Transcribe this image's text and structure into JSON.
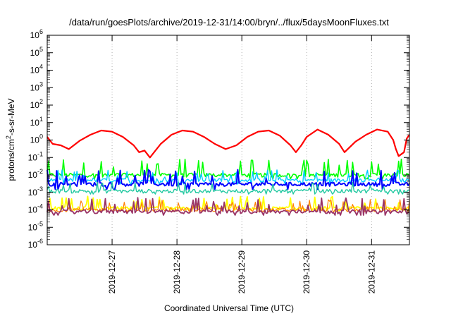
{
  "chart_data": {
    "type": "line",
    "title": "/data/run/goesPlots/archive/2019-12-31/14:00/bryn/../flux/5daysMoonFluxes.txt",
    "xlabel": "Coordinated Universal Time (UTC)",
    "ylabel": "protons/cm²-s-sr-MeV",
    "ylabel_parts": {
      "main": "protons/cm",
      "sup": "2",
      "rest": "-s-sr-MeV"
    },
    "y_scale": "log",
    "ylim": [
      1e-06,
      1000000.0
    ],
    "y_ticks": [
      {
        "value": 1e-06,
        "base": "10",
        "exp": "-6"
      },
      {
        "value": 1e-05,
        "base": "10",
        "exp": "-5"
      },
      {
        "value": 0.0001,
        "base": "10",
        "exp": "-4"
      },
      {
        "value": 0.001,
        "base": "10",
        "exp": "-3"
      },
      {
        "value": 0.01,
        "base": "10",
        "exp": "-2"
      },
      {
        "value": 0.1,
        "base": "10",
        "exp": "-1"
      },
      {
        "value": 1,
        "base": "10",
        "exp": "0"
      },
      {
        "value": 10,
        "base": "10",
        "exp": "1"
      },
      {
        "value": 100,
        "base": "10",
        "exp": "2"
      },
      {
        "value": 1000,
        "base": "10",
        "exp": "3"
      },
      {
        "value": 10000,
        "base": "10",
        "exp": "4"
      },
      {
        "value": 100000,
        "base": "10",
        "exp": "5"
      },
      {
        "value": 1000000,
        "base": "10",
        "exp": "6"
      }
    ],
    "xlim": [
      "2019-12-26T00:00",
      "2019-12-31T14:00"
    ],
    "x_ticks": [
      {
        "value": "2019-12-27T00:00",
        "label": "2019-12-27"
      },
      {
        "value": "2019-12-28T00:00",
        "label": "2019-12-28"
      },
      {
        "value": "2019-12-29T00:00",
        "label": "2019-12-29"
      },
      {
        "value": "2019-12-30T00:00",
        "label": "2019-12-30"
      },
      {
        "value": "2019-12-31T00:00",
        "label": "2019-12-31"
      }
    ],
    "grid": true,
    "series": [
      {
        "color": "#ff0000",
        "width": 2.2,
        "points": [
          [
            "2019-12-26T00:00",
            1.5
          ],
          [
            "2019-12-26T02:00",
            0.6
          ],
          [
            "2019-12-26T05:00",
            0.5
          ],
          [
            "2019-12-26T08:00",
            0.3
          ],
          [
            "2019-12-26T12:00",
            0.9
          ],
          [
            "2019-12-26T16:00",
            2.0
          ],
          [
            "2019-12-26T20:00",
            3.5
          ],
          [
            "2019-12-27T00:00",
            3.0
          ],
          [
            "2019-12-27T04:00",
            1.5
          ],
          [
            "2019-12-27T08:00",
            0.5
          ],
          [
            "2019-12-27T10:00",
            0.2
          ],
          [
            "2019-12-27T12:00",
            0.25
          ],
          [
            "2019-12-27T14:00",
            0.1
          ],
          [
            "2019-12-27T18:00",
            0.6
          ],
          [
            "2019-12-27T22:00",
            2.0
          ],
          [
            "2019-12-28T02:00",
            3.5
          ],
          [
            "2019-12-28T06:00",
            3.0
          ],
          [
            "2019-12-28T10:00",
            1.5
          ],
          [
            "2019-12-28T14:00",
            0.6
          ],
          [
            "2019-12-28T18:00",
            0.3
          ],
          [
            "2019-12-28T22:00",
            0.5
          ],
          [
            "2019-12-29T02:00",
            1.5
          ],
          [
            "2019-12-29T06:00",
            3.0
          ],
          [
            "2019-12-29T10:00",
            3.5
          ],
          [
            "2019-12-29T14:00",
            1.8
          ],
          [
            "2019-12-29T18:00",
            0.5
          ],
          [
            "2019-12-29T20:00",
            0.2
          ],
          [
            "2019-12-29T22:00",
            0.5
          ],
          [
            "2019-12-30T00:00",
            1.5
          ],
          [
            "2019-12-30T04:00",
            4.0
          ],
          [
            "2019-12-30T08:00",
            2.0
          ],
          [
            "2019-12-30T12:00",
            0.6
          ],
          [
            "2019-12-30T14:00",
            0.2
          ],
          [
            "2019-12-30T18:00",
            0.8
          ],
          [
            "2019-12-30T22:00",
            2.0
          ],
          [
            "2019-12-31T02:00",
            4.0
          ],
          [
            "2019-12-31T06:00",
            3.0
          ],
          [
            "2019-12-31T08:00",
            1.0
          ],
          [
            "2019-12-31T09:00",
            0.3
          ],
          [
            "2019-12-31T10:00",
            0.12
          ],
          [
            "2019-12-31T12:00",
            0.2
          ],
          [
            "2019-12-31T13:00",
            1.2
          ],
          [
            "2019-12-31T14:00",
            2.0
          ]
        ]
      },
      {
        "color": "#00ff00",
        "width": 1.6,
        "baseline": 0.01,
        "noise_hi": 0.08,
        "noise_lo": 0.006
      },
      {
        "color": "#00ccff",
        "width": 1.4,
        "baseline": 0.005,
        "noise_hi": 0.02,
        "noise_lo": 0.003
      },
      {
        "color": "#0000ff",
        "width": 2.0,
        "baseline": 0.003,
        "noise_hi": 0.02,
        "noise_lo": 0.0015
      },
      {
        "color": "#20c8a0",
        "width": 1.4,
        "baseline": 0.0012,
        "noise_hi": 0.004,
        "noise_lo": 0.0008
      },
      {
        "color": "#ffff00",
        "width": 1.8,
        "baseline": 0.00012,
        "noise_hi": 0.0006,
        "noise_lo": 9e-05
      },
      {
        "color": "#ff8000",
        "width": 1.2,
        "baseline": 0.0001,
        "noise_hi": 0.0004,
        "noise_lo": 8e-05
      },
      {
        "color": "#993366",
        "width": 1.8,
        "baseline": 8e-05,
        "noise_hi": 0.0005,
        "noise_lo": 5e-05
      }
    ]
  }
}
